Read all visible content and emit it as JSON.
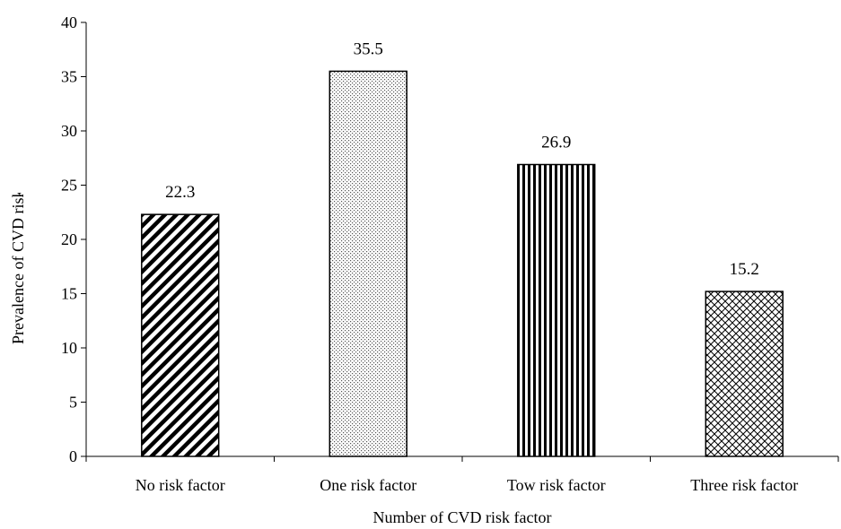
{
  "chart_data": {
    "type": "bar",
    "title": "",
    "xlabel": "Number of CVD risk factor",
    "ylabel": "Prevalence of CVD risk fa",
    "categories": [
      "No risk factor",
      "One risk factor",
      "Tow risk factor",
      "Three risk factor"
    ],
    "values": [
      22.3,
      35.5,
      26.9,
      15.2
    ],
    "data_labels": [
      "22.3",
      "35.5",
      "26.9",
      "15.2"
    ],
    "bar_patterns": [
      "diagonal-stripes",
      "dots",
      "vertical-stripes",
      "crosshatch"
    ],
    "ylim": [
      0,
      40
    ],
    "yticks": [
      0,
      5,
      10,
      15,
      20,
      25,
      30,
      35,
      40
    ],
    "grid": false,
    "legend": "none"
  }
}
